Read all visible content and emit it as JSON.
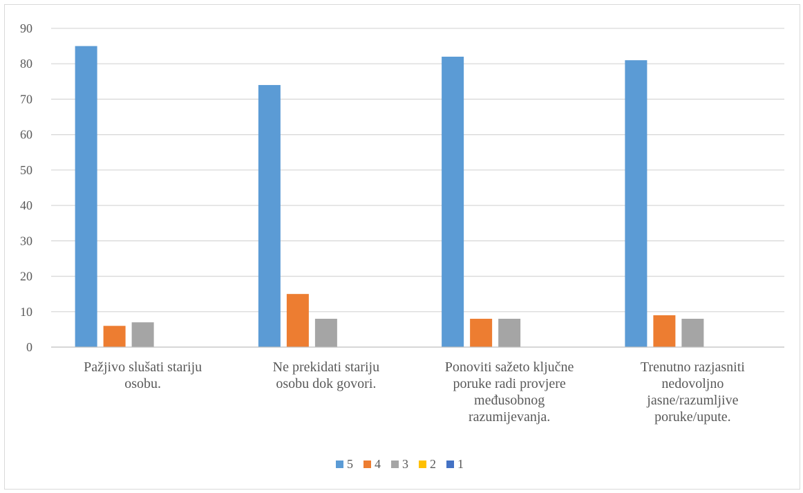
{
  "chart_data": {
    "type": "bar",
    "categories": [
      [
        "Pažjivo slušati stariju",
        "osobu."
      ],
      [
        "Ne prekidati stariju",
        "osobu dok govori."
      ],
      [
        "Ponoviti sažeto ključne",
        "poruke radi provjere",
        "međusobnog",
        "razumijevanja."
      ],
      [
        "Trenutno razjasniti",
        "nedovoljno",
        "jasne/razumljive",
        "poruke/upute."
      ]
    ],
    "series": [
      {
        "name": "5",
        "color": "#5b9bd5",
        "values": [
          85,
          74,
          82,
          81
        ]
      },
      {
        "name": "4",
        "color": "#ed7d31",
        "values": [
          6,
          15,
          8,
          9
        ]
      },
      {
        "name": "3",
        "color": "#a5a5a5",
        "values": [
          7,
          8,
          8,
          8
        ]
      },
      {
        "name": "2",
        "color": "#ffc000",
        "values": [
          0,
          0,
          0,
          0
        ]
      },
      {
        "name": "1",
        "color": "#4472c4",
        "values": [
          0,
          0,
          0,
          0
        ]
      }
    ],
    "ylim": [
      0,
      90
    ],
    "yticks": [
      0,
      10,
      20,
      30,
      40,
      50,
      60,
      70,
      80,
      90
    ],
    "grid": true,
    "legend_position": "bottom",
    "gridline_color": "#d9d9d9"
  }
}
